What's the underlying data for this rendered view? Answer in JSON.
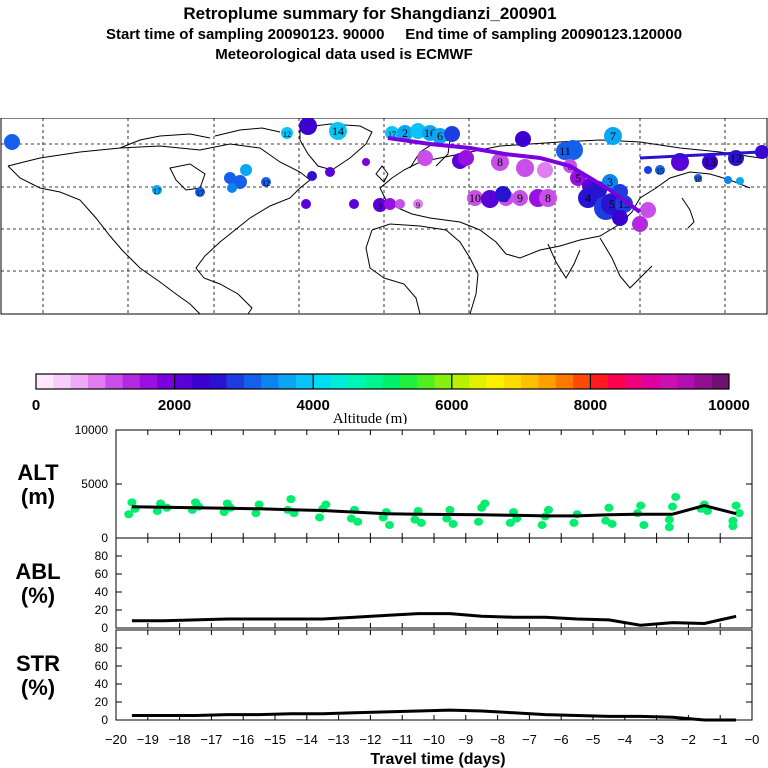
{
  "header": {
    "title": "Retroplume summary for Shangdianzi_200901",
    "sampling": "Start time of sampling 20090123. 90000     End time of sampling 20090123.120000",
    "met": "Meteorological data used is ECMWF"
  },
  "colorbar": {
    "label": "Altitude (m)",
    "ticks": [
      "0",
      "2000",
      "4000",
      "6000",
      "8000",
      "10000"
    ],
    "colors": [
      "#ffe8ff",
      "#f7cdfa",
      "#eeaaf5",
      "#e07df0",
      "#c850e8",
      "#b428e0",
      "#9a10e0",
      "#7a00e0",
      "#5a00d8",
      "#3c00d0",
      "#2814d0",
      "#1e3ce0",
      "#1460ec",
      "#0a84f0",
      "#0aa6f4",
      "#0ac4f8",
      "#00dcf4",
      "#00ecd8",
      "#00f4b4",
      "#00f490",
      "#00f06c",
      "#20f040",
      "#50f020",
      "#88f010",
      "#b8f000",
      "#e0f000",
      "#fff000",
      "#ffdc00",
      "#ffc000",
      "#ffa000",
      "#ff7800",
      "#ff4a00",
      "#ff1a20",
      "#ff0050",
      "#f0007c",
      "#e000a0",
      "#cc10b0",
      "#b010b0",
      "#901090",
      "#701070"
    ],
    "max": 10000
  },
  "map": {
    "labels": [
      "2",
      "3",
      "4",
      "5",
      "6",
      "7",
      "8",
      "9",
      "10",
      "11",
      "12",
      "13",
      "14",
      "15",
      "16",
      "17",
      "18",
      "19"
    ]
  },
  "chart_data": [
    {
      "type": "line",
      "panel": "ALT",
      "ylabel": "ALT\n(m)",
      "ylabel_lines": [
        "ALT",
        "(m)"
      ],
      "ylim": [
        0,
        10000
      ],
      "yticks": [
        "0",
        "5000",
        "10000"
      ],
      "xlim": [
        -20,
        0
      ],
      "x": [
        -19.5,
        -18.5,
        -17.5,
        -16.5,
        -15.5,
        -14.5,
        -13.5,
        -12.5,
        -11.5,
        -10.5,
        -9.5,
        -8.5,
        -7.5,
        -6.5,
        -5.5,
        -4.5,
        -3.5,
        -2.5,
        -1.5,
        -0.5
      ],
      "values": [
        2900,
        2850,
        2800,
        2750,
        2700,
        2620,
        2550,
        2400,
        2250,
        2200,
        2180,
        2150,
        2100,
        2050,
        2050,
        2150,
        2200,
        2200,
        3000,
        2250
      ],
      "scatter_color": "#00ee6e",
      "scatter": [
        [
          -19.6,
          2200
        ],
        [
          -19.5,
          3300
        ],
        [
          -19.4,
          2700
        ],
        [
          -18.7,
          2500
        ],
        [
          -18.6,
          3200
        ],
        [
          -18.4,
          2800
        ],
        [
          -17.6,
          2600
        ],
        [
          -17.5,
          3300
        ],
        [
          -17.4,
          2900
        ],
        [
          -16.6,
          2400
        ],
        [
          -16.5,
          3200
        ],
        [
          -16.4,
          2800
        ],
        [
          -15.6,
          2300
        ],
        [
          -15.5,
          3100
        ],
        [
          -14.6,
          2600
        ],
        [
          -14.5,
          3600
        ],
        [
          -14.4,
          2300
        ],
        [
          -13.6,
          1900
        ],
        [
          -13.5,
          2700
        ],
        [
          -13.4,
          3100
        ],
        [
          -12.6,
          1800
        ],
        [
          -12.5,
          2600
        ],
        [
          -12.4,
          1500
        ],
        [
          -11.6,
          1900
        ],
        [
          -11.5,
          2400
        ],
        [
          -11.4,
          1200
        ],
        [
          -10.6,
          1700
        ],
        [
          -10.5,
          2500
        ],
        [
          -10.4,
          1400
        ],
        [
          -9.6,
          1800
        ],
        [
          -9.5,
          2600
        ],
        [
          -9.4,
          1300
        ],
        [
          -8.6,
          1500
        ],
        [
          -8.5,
          2800
        ],
        [
          -8.4,
          3200
        ],
        [
          -7.6,
          1400
        ],
        [
          -7.5,
          2400
        ],
        [
          -7.4,
          1800
        ],
        [
          -6.6,
          1200
        ],
        [
          -6.5,
          2000
        ],
        [
          -6.4,
          2600
        ],
        [
          -5.6,
          1400
        ],
        [
          -5.5,
          2200
        ],
        [
          -4.6,
          1600
        ],
        [
          -4.5,
          2800
        ],
        [
          -4.4,
          1300
        ],
        [
          -3.6,
          2300
        ],
        [
          -3.5,
          3000
        ],
        [
          -3.4,
          1200
        ],
        [
          -2.6,
          1700
        ],
        [
          -2.5,
          2900
        ],
        [
          -2.4,
          3800
        ],
        [
          -2.6,
          1000
        ],
        [
          -1.6,
          2700
        ],
        [
          -1.5,
          3100
        ],
        [
          -1.4,
          2500
        ],
        [
          -0.6,
          1600
        ],
        [
          -0.5,
          3000
        ],
        [
          -0.4,
          2300
        ],
        [
          -0.6,
          1100
        ]
      ]
    },
    {
      "type": "line",
      "panel": "ABL",
      "ylabel_lines": [
        "ABL",
        "(%)"
      ],
      "ylim": [
        0,
        100
      ],
      "yticks": [
        "0",
        "20",
        "40",
        "60",
        "80"
      ],
      "xlim": [
        -20,
        0
      ],
      "x": [
        -19.5,
        -18.5,
        -17.5,
        -16.5,
        -15.5,
        -14.5,
        -13.5,
        -12.5,
        -11.5,
        -10.5,
        -9.5,
        -8.5,
        -7.5,
        -6.5,
        -5.5,
        -4.5,
        -3.5,
        -2.5,
        -1.5,
        -0.5
      ],
      "values": [
        8,
        8,
        9,
        10,
        10,
        10,
        10,
        12,
        14,
        16,
        16,
        13,
        12,
        12,
        10,
        9,
        3,
        6,
        5,
        13
      ]
    },
    {
      "type": "line",
      "panel": "STR",
      "ylabel_lines": [
        "STR",
        "(%)"
      ],
      "ylim": [
        0,
        100
      ],
      "yticks": [
        "0",
        "20",
        "40",
        "60",
        "80"
      ],
      "xlim": [
        -20,
        0
      ],
      "xlabel": "Travel time (days)",
      "xticks": [
        "−20",
        "−19",
        "−18",
        "−17",
        "−16",
        "−15",
        "−14",
        "−13",
        "−12",
        "−11",
        "−10",
        "−9",
        "−8",
        "−7",
        "−6",
        "−5",
        "−4",
        "−3",
        "−2",
        "−1",
        "−0"
      ],
      "x": [
        -19.5,
        -18.5,
        -17.5,
        -16.5,
        -15.5,
        -14.5,
        -13.5,
        -12.5,
        -11.5,
        -10.5,
        -9.5,
        -8.5,
        -7.5,
        -6.5,
        -5.5,
        -4.5,
        -3.5,
        -2.5,
        -1.5,
        -0.5
      ],
      "values": [
        5,
        5,
        5,
        6,
        6,
        7,
        7,
        8,
        9,
        10,
        11,
        10,
        8,
        6,
        5,
        4,
        4,
        3,
        0,
        0
      ]
    }
  ]
}
